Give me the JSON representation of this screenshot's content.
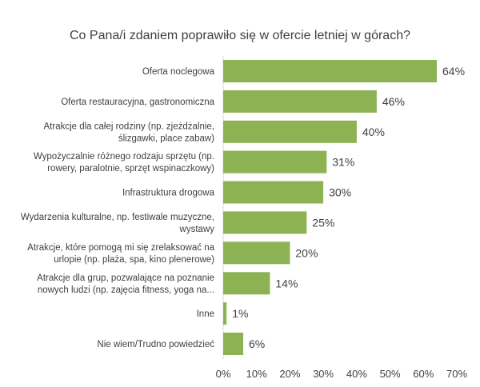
{
  "chart_data": {
    "type": "bar",
    "orientation": "horizontal",
    "title": "Co Pana/i zdaniem poprawiło się w ofercie letniej w górach?",
    "categories": [
      [
        "Oferta noclegowa"
      ],
      [
        "Oferta restauracyjna, gastronomiczna"
      ],
      [
        "Atrakcje dla całej rodziny (np. zjeżdżalnie,",
        "ślizgawki, place zabaw)"
      ],
      [
        "Wypożyczalnie różnego rodzaju sprzętu (np.",
        "rowery, paralotnie, sprzęt wspinaczkowy)"
      ],
      [
        "Infrastruktura drogowa"
      ],
      [
        "Wydarzenia kulturalne, np. festiwale muzyczne,",
        "wystawy"
      ],
      [
        "Atrakcje, które pomogą mi się zrelaksować na",
        "urlopie (np. plaża, spa, kino plenerowe)"
      ],
      [
        "Atrakcje dla grup, pozwalające na poznanie",
        "nowych ludzi (np. zajęcia fitness, yoga na..."
      ],
      [
        "Inne"
      ],
      [
        "Nie wiem/Trudno powiedzieć"
      ]
    ],
    "values": [
      64,
      46,
      40,
      31,
      30,
      25,
      20,
      14,
      1,
      6
    ],
    "value_labels": [
      "64%",
      "46%",
      "40%",
      "31%",
      "30%",
      "25%",
      "20%",
      "14%",
      "1%",
      "6%"
    ],
    "xlim": [
      0,
      70
    ],
    "x_ticks": [
      0,
      10,
      20,
      30,
      40,
      50,
      60,
      70
    ],
    "x_tick_labels": [
      "0%",
      "10%",
      "20%",
      "30%",
      "40%",
      "50%",
      "60%",
      "70%"
    ],
    "bar_color": "#8db254",
    "grid": false
  }
}
